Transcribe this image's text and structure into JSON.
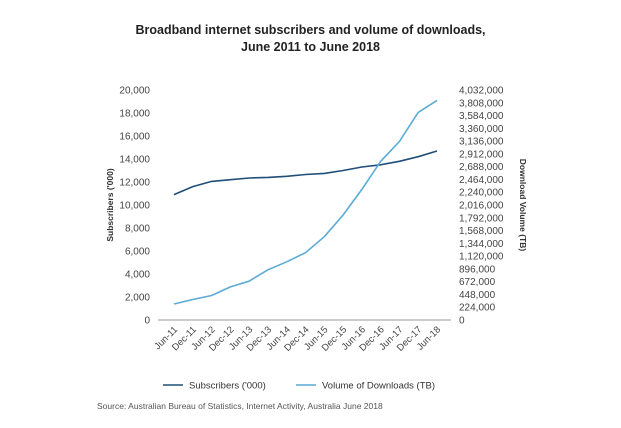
{
  "chart_data": {
    "type": "line",
    "title_line1": "Broadband internet subscribers and volume of downloads,",
    "title_line2": "June 2011 to June 2018",
    "ylabel": "Subscribers ('000)",
    "y2label": "Download Volume (TB)",
    "categories": [
      "Jun-11",
      "Dec-11",
      "Jun-12",
      "Dec-12",
      "Jun-13",
      "Dec-13",
      "Jun-14",
      "Dec-14",
      "Jun-15",
      "Dec-15",
      "Jun-16",
      "Dec-16",
      "Jun-17",
      "Dec-17",
      "Jun-18"
    ],
    "ylim": [
      0,
      20000
    ],
    "y2lim": [
      0,
      4032000
    ],
    "y_ticks": [
      "0",
      "2,000",
      "4,000",
      "6,000",
      "8,000",
      "10,000",
      "12,000",
      "14,000",
      "16,000",
      "18,000",
      "20,000"
    ],
    "y2_ticks": [
      "0",
      "224,000",
      "448,000",
      "672,000",
      "896,000",
      "1,120,000",
      "1,344,000",
      "1,568,000",
      "1,792,000",
      "2,016,000",
      "2,240,000",
      "2,464,000",
      "2,688,000",
      "2,912,000",
      "3,136,000",
      "3,360,000",
      "3,584,000",
      "3,808,000",
      "4,032,000"
    ],
    "series": [
      {
        "name": "Subscribers ('000)",
        "axis": "left",
        "color": "#1f4e79",
        "values": [
          10900,
          11600,
          12050,
          12200,
          12350,
          12400,
          12500,
          12650,
          12750,
          13000,
          13300,
          13500,
          13800,
          14200,
          14700
        ]
      },
      {
        "name": "Volume of Downloads (TB)",
        "axis": "right",
        "color": "#5aabd6",
        "values": [
          280000,
          360000,
          430000,
          580000,
          680000,
          880000,
          1020000,
          1180000,
          1460000,
          1840000,
          2290000,
          2780000,
          3130000,
          3640000,
          3850000
        ]
      }
    ],
    "grid": false,
    "legend_position": "bottom"
  },
  "source": "Source: Australian Bureau of Statistics, Internet Activity, Australia June 2018"
}
